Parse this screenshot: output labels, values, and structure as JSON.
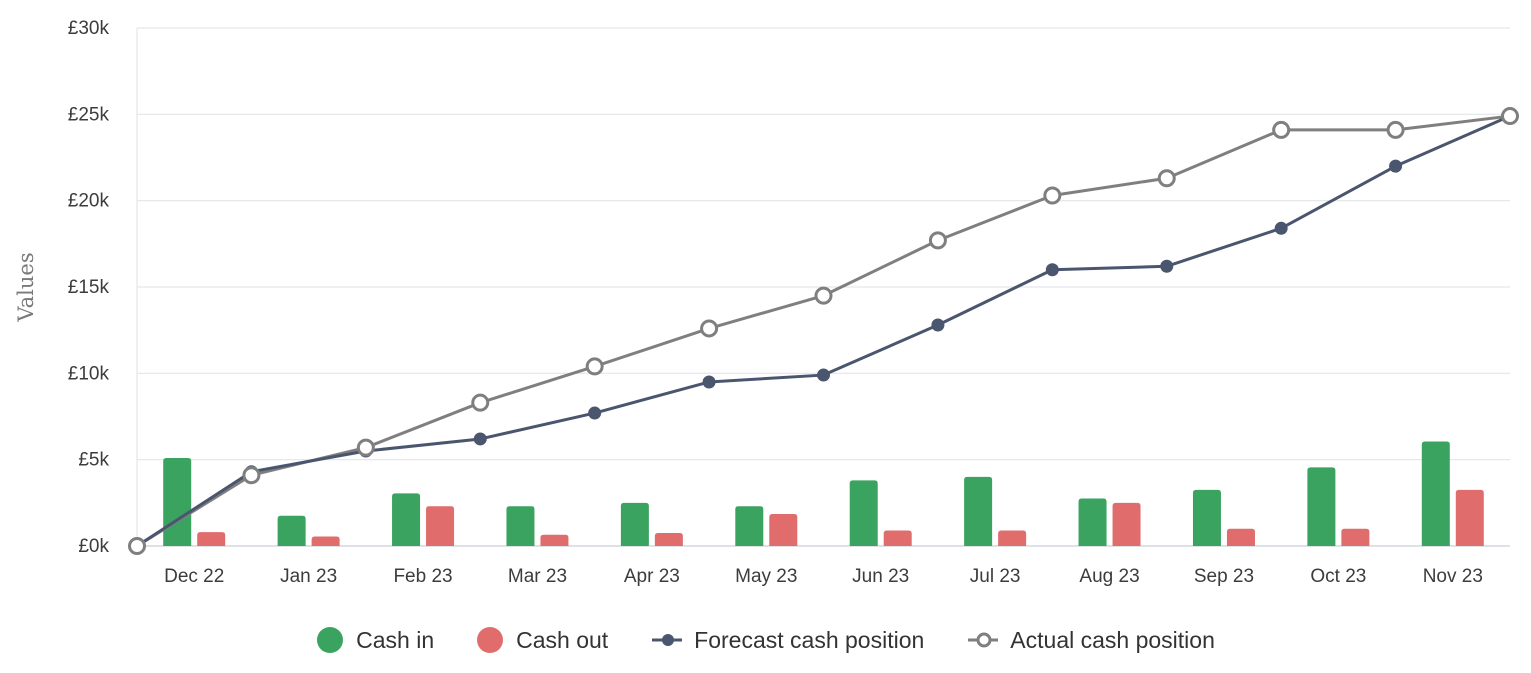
{
  "colors": {
    "cash_in": "#3aa35f",
    "cash_out": "#e06c6c",
    "forecast": "#4a566e",
    "actual": "#7f7f7f",
    "grid": "#e3e6ea",
    "axis": "#c9d0d8"
  },
  "chart_data": {
    "type": "bar",
    "categories": [
      "Dec 22",
      "Jan 23",
      "Feb 23",
      "Mar 23",
      "Apr 23",
      "May 23",
      "Jun 23",
      "Jul 23",
      "Aug 23",
      "Sep 23",
      "Oct 23",
      "Nov 23"
    ],
    "ylabel": "Values",
    "ylim": [
      0,
      30000
    ],
    "y_ticks": [
      0,
      5000,
      10000,
      15000,
      20000,
      25000,
      30000
    ],
    "y_tick_labels": [
      "£0k",
      "£5k",
      "£10k",
      "£15k",
      "£20k",
      "£25k",
      "£30k"
    ],
    "grid": true,
    "legend_position": "bottom",
    "series": [
      {
        "name": "Cash in",
        "type": "bar",
        "color": "#3aa35f",
        "values": [
          5100,
          1750,
          3050,
          2300,
          2500,
          2300,
          3800,
          4000,
          2750,
          3250,
          4550,
          6050
        ]
      },
      {
        "name": "Cash out",
        "type": "bar",
        "color": "#e06c6c",
        "values": [
          800,
          550,
          2300,
          650,
          750,
          1850,
          900,
          900,
          2500,
          1000,
          1000,
          3250
        ]
      },
      {
        "name": "Forecast cash position",
        "type": "line",
        "color": "#4a566e",
        "marker": "filled",
        "x": [
          0,
          1,
          2,
          3,
          4,
          5,
          6,
          7,
          8,
          9,
          10,
          11,
          12
        ],
        "values": [
          0,
          4300,
          5500,
          6200,
          7700,
          9500,
          9900,
          12800,
          16000,
          16200,
          18400,
          22000,
          24900
        ]
      },
      {
        "name": "Actual cash position",
        "type": "line",
        "color": "#7f7f7f",
        "marker": "hollow",
        "x": [
          0,
          1,
          2,
          3,
          4,
          5,
          6,
          7,
          8,
          9,
          10,
          11,
          12
        ],
        "values": [
          0,
          4100,
          5700,
          8300,
          10400,
          12600,
          14500,
          17700,
          20300,
          21300,
          24100,
          24100,
          24900
        ]
      }
    ]
  }
}
